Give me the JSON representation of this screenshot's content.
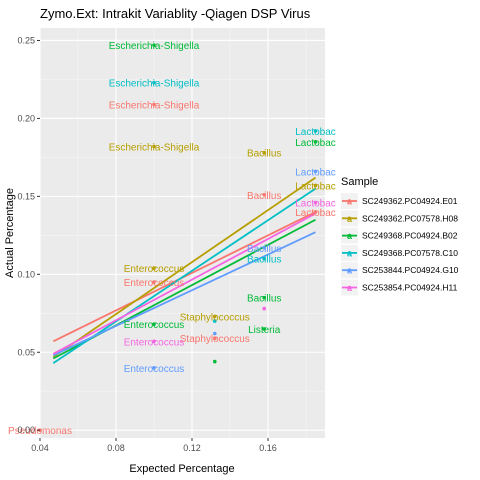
{
  "chart_data": {
    "type": "scatter",
    "title": "Zymo.Ext: Intrakit Variablity -Qiagen DSP Virus",
    "xlabel": "Expected Percentage",
    "ylabel": "Actual Percentage",
    "xlim": [
      0.04,
      0.19
    ],
    "ylim": [
      -0.005,
      0.258
    ],
    "xticks": [
      0.04,
      0.08,
      0.12,
      0.16
    ],
    "xtick_labels": [
      "0.04",
      "0.08",
      "0.12",
      "0.16"
    ],
    "yticks": [
      0.0,
      0.05,
      0.1,
      0.15,
      0.2,
      0.25
    ],
    "ytick_labels": [
      "0.00",
      "0.05",
      "0.10",
      "0.15",
      "0.20",
      "0.25"
    ],
    "grid": true,
    "legend": {
      "title": "Sample",
      "position": "right"
    },
    "series": [
      {
        "name": "SC249362.PC04924.E01",
        "color": "#F8766D",
        "points": [
          {
            "x": 0.1,
            "y": 0.209,
            "label": "Escherichia-Shigella"
          },
          {
            "x": 0.158,
            "y": 0.151,
            "label": "Bacillus"
          },
          {
            "x": 0.185,
            "y": 0.14,
            "label": "Lactobac"
          },
          {
            "x": 0.1,
            "y": 0.095,
            "label": "Enterococcus"
          },
          {
            "x": 0.132,
            "y": 0.059,
            "label": "Staphylococcus"
          },
          {
            "x": 0.04,
            "y": 0.0,
            "label": "Pseudomonas"
          }
        ],
        "line": [
          [
            0.047,
            0.057
          ],
          [
            0.185,
            0.14
          ]
        ]
      },
      {
        "name": "SC249362.PC07578.H08",
        "color": "#B79F00",
        "points": [
          {
            "x": 0.1,
            "y": 0.182,
            "label": "Escherichia-Shigella"
          },
          {
            "x": 0.158,
            "y": 0.178,
            "label": "Bacillus"
          },
          {
            "x": 0.185,
            "y": 0.157,
            "label": "Lactobac"
          },
          {
            "x": 0.1,
            "y": 0.104,
            "label": "Enterococcus"
          },
          {
            "x": 0.132,
            "y": 0.073,
            "label": "Staphylococcus"
          }
        ],
        "line": [
          [
            0.047,
            0.047
          ],
          [
            0.185,
            0.162
          ]
        ]
      },
      {
        "name": "SC249368.PC04924.B02",
        "color": "#00BA38",
        "points": [
          {
            "x": 0.1,
            "y": 0.247,
            "label": "Escherichia-Shigella"
          },
          {
            "x": 0.185,
            "y": 0.185,
            "label": "Lactobac"
          },
          {
            "x": 0.158,
            "y": 0.085,
            "label": "Bacillus"
          },
          {
            "x": 0.1,
            "y": 0.068,
            "label": "Enterococcus"
          },
          {
            "x": 0.158,
            "y": 0.065,
            "label": "Listeria"
          },
          {
            "x": 0.132,
            "y": 0.044,
            "label": ""
          }
        ],
        "line": [
          [
            0.047,
            0.046
          ],
          [
            0.185,
            0.135
          ]
        ]
      },
      {
        "name": "SC249368.PC07578.C10",
        "color": "#00BFC4",
        "points": [
          {
            "x": 0.1,
            "y": 0.223,
            "label": "Escherichia-Shigella"
          },
          {
            "x": 0.185,
            "y": 0.192,
            "label": "Lactobac"
          },
          {
            "x": 0.158,
            "y": 0.11,
            "label": "Bacillus"
          },
          {
            "x": 0.132,
            "y": 0.07,
            "label": ""
          }
        ],
        "line": [
          [
            0.047,
            0.043
          ],
          [
            0.185,
            0.155
          ]
        ]
      },
      {
        "name": "SC253844.PC04924.G10",
        "color": "#619CFF",
        "points": [
          {
            "x": 0.185,
            "y": 0.166,
            "label": "Lactobac"
          },
          {
            "x": 0.158,
            "y": 0.117,
            "label": "Bacillus"
          },
          {
            "x": 0.132,
            "y": 0.062,
            "label": ""
          },
          {
            "x": 0.1,
            "y": 0.04,
            "label": "Enterococcus"
          }
        ],
        "line": [
          [
            0.047,
            0.048
          ],
          [
            0.185,
            0.127
          ]
        ]
      },
      {
        "name": "SC253854.PC04924.H11",
        "color": "#F564E3",
        "points": [
          {
            "x": 0.185,
            "y": 0.146,
            "label": "Lactobac"
          },
          {
            "x": 0.158,
            "y": 0.078,
            "label": ""
          },
          {
            "x": 0.1,
            "y": 0.057,
            "label": "Enterococcus"
          }
        ],
        "line": [
          [
            0.047,
            0.049
          ],
          [
            0.185,
            0.139
          ]
        ]
      }
    ]
  }
}
